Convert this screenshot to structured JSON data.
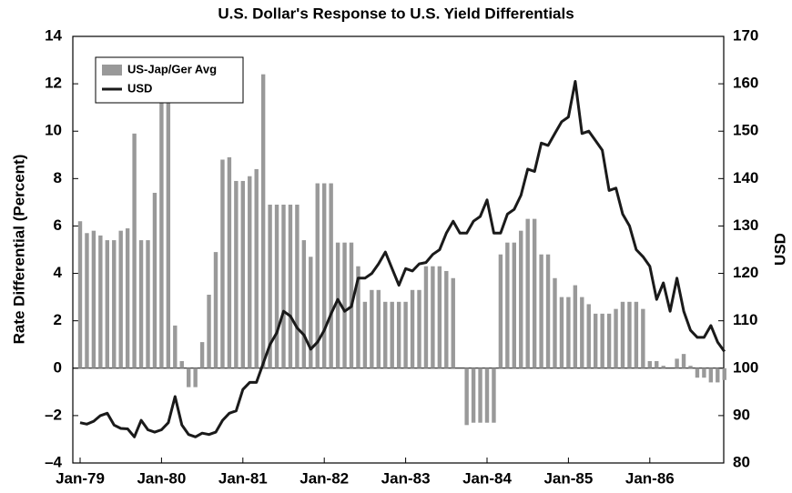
{
  "chart_data": {
    "type": "bar-line",
    "title": "U.S. Dollar's Response to U.S. Yield Differentials",
    "y_label": "Rate Differential (Percent)",
    "y2_label": "USD",
    "categories": [
      "Jan-79",
      null,
      null,
      null,
      null,
      null,
      null,
      null,
      null,
      null,
      null,
      null,
      "Jan-80",
      null,
      null,
      null,
      null,
      null,
      null,
      null,
      null,
      null,
      null,
      null,
      "Jan-81",
      null,
      null,
      null,
      null,
      null,
      null,
      null,
      null,
      null,
      null,
      null,
      "Jan-82",
      null,
      null,
      null,
      null,
      null,
      null,
      null,
      null,
      null,
      null,
      null,
      "Jan-83",
      null,
      null,
      null,
      null,
      null,
      null,
      null,
      null,
      null,
      null,
      null,
      "Jan-84",
      null,
      null,
      null,
      null,
      null,
      null,
      null,
      null,
      null,
      null,
      null,
      "Jan-85",
      null,
      null,
      null,
      null,
      null,
      null,
      null,
      null,
      null,
      null,
      null,
      "Jan-86",
      null,
      null,
      null,
      null,
      null,
      null,
      null,
      null,
      null,
      null,
      null
    ],
    "series": [
      {
        "name": "US-Jap/Ger Avg",
        "type": "bar",
        "color": "#999999",
        "values": [
          6.2,
          5.7,
          5.8,
          5.6,
          5.4,
          5.4,
          5.8,
          5.9,
          9.9,
          5.4,
          5.4,
          7.4,
          11.5,
          13.0,
          1.8,
          0.3,
          -0.8,
          -0.8,
          1.1,
          3.1,
          4.9,
          8.8,
          8.9,
          7.9,
          7.9,
          8.1,
          8.4,
          12.4,
          6.9,
          6.9,
          6.9,
          6.9,
          6.9,
          5.4,
          4.7,
          7.8,
          7.8,
          7.8,
          5.3,
          5.3,
          5.3,
          4.3,
          2.8,
          3.3,
          3.3,
          2.8,
          2.8,
          2.8,
          2.8,
          3.3,
          3.3,
          4.3,
          4.3,
          4.3,
          4.1,
          3.8,
          0,
          -2.4,
          -2.3,
          -2.3,
          -2.3,
          -2.3,
          4.8,
          5.3,
          5.3,
          5.8,
          6.3,
          6.3,
          4.8,
          4.8,
          3.8,
          3.0,
          3.0,
          3.5,
          3.0,
          2.7,
          2.3,
          2.3,
          2.3,
          2.5,
          2.8,
          2.8,
          2.8,
          2.5,
          0.3,
          0.3,
          0.1,
          0.0,
          0.4,
          0.6,
          0.1,
          -0.4,
          -0.4,
          -0.6,
          -0.6,
          -0.5
        ]
      },
      {
        "name": "USD",
        "type": "line",
        "axis": "y2",
        "color": "#1a1a1a",
        "values": [
          88.5,
          88.2,
          88.8,
          90,
          90.5,
          88,
          87.3,
          87.2,
          85.5,
          89,
          87,
          86.5,
          87,
          88.5,
          94,
          88,
          86,
          85.5,
          86.3,
          86,
          86.5,
          89,
          90.5,
          91,
          95.5,
          97,
          97,
          101,
          105,
          107.5,
          112,
          111,
          108.5,
          107,
          104,
          105.5,
          108,
          111.5,
          114.5,
          112,
          113,
          119,
          119,
          120,
          122,
          124.5,
          121,
          117.5,
          121,
          120.5,
          122,
          122.3,
          124,
          125,
          128.5,
          131,
          128.5,
          128.5,
          131,
          132,
          135.5,
          128.5,
          128.5,
          132.5,
          133.5,
          136.5,
          142,
          141.5,
          147.5,
          147,
          149.5,
          152,
          153,
          160.5,
          149.5,
          150,
          148,
          146,
          137.5,
          138,
          132.5,
          130,
          125,
          123.5,
          121.5,
          114.5,
          118,
          112,
          119,
          112,
          108,
          106.5,
          106.5,
          109,
          105.5,
          103.5
        ]
      }
    ],
    "ylim": [
      -4,
      14
    ],
    "yticks": [
      {
        "value": -4,
        "label": "–4"
      },
      {
        "value": -2,
        "label": "–2"
      },
      0,
      2,
      4,
      6,
      8,
      10,
      12,
      14
    ],
    "y2lim": [
      80,
      170
    ],
    "y2ticks": [
      80,
      90,
      100,
      110,
      120,
      130,
      140,
      150,
      160,
      170
    ],
    "legend": "upper left"
  }
}
